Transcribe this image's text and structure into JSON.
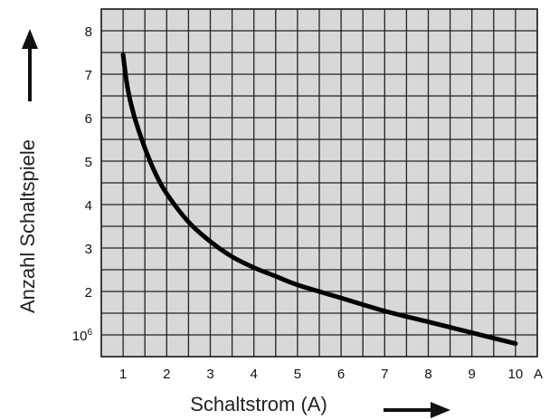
{
  "chart_data": {
    "type": "line",
    "xlabel": "Schaltstrom (A)",
    "ylabel": "Anzahl Schaltspiele",
    "x_unit_label": "A",
    "xlim": [
      0.5,
      10.5
    ],
    "ylim": [
      0.5,
      8.5
    ],
    "x_ticks": [
      1,
      2,
      3,
      4,
      5,
      6,
      7,
      8,
      9,
      10
    ],
    "x_tick_labels": [
      "1",
      "2",
      "3",
      "4",
      "5",
      "6",
      "7",
      "8",
      "9",
      "10"
    ],
    "y_ticks": [
      1,
      2,
      3,
      4,
      5,
      6,
      7,
      8
    ],
    "y_tick_labels": [
      {
        "text": "10",
        "sup": "6"
      },
      {
        "text": "2",
        "sup": ""
      },
      {
        "text": "3",
        "sup": ""
      },
      {
        "text": "4",
        "sup": ""
      },
      {
        "text": "5",
        "sup": ""
      },
      {
        "text": "6",
        "sup": ""
      },
      {
        "text": "7",
        "sup": ""
      },
      {
        "text": "8",
        "sup": ""
      }
    ],
    "grid": true,
    "grid_step_x": 0.5,
    "grid_step_y": 0.5,
    "plot_background": "#d8d8d8",
    "grid_color": "#222222",
    "line_color": "#000000",
    "series": [
      {
        "x": [
          1.0,
          1.1,
          1.25,
          1.5,
          1.75,
          2.0,
          2.5,
          3.0,
          3.5,
          4.0,
          4.5,
          5.0,
          6.0,
          7.0,
          8.0,
          9.0,
          10.0
        ],
        "y": [
          7.45,
          6.7,
          6.05,
          5.3,
          4.7,
          4.25,
          3.6,
          3.15,
          2.8,
          2.55,
          2.35,
          2.15,
          1.85,
          1.55,
          1.3,
          1.05,
          0.8
        ]
      }
    ]
  }
}
